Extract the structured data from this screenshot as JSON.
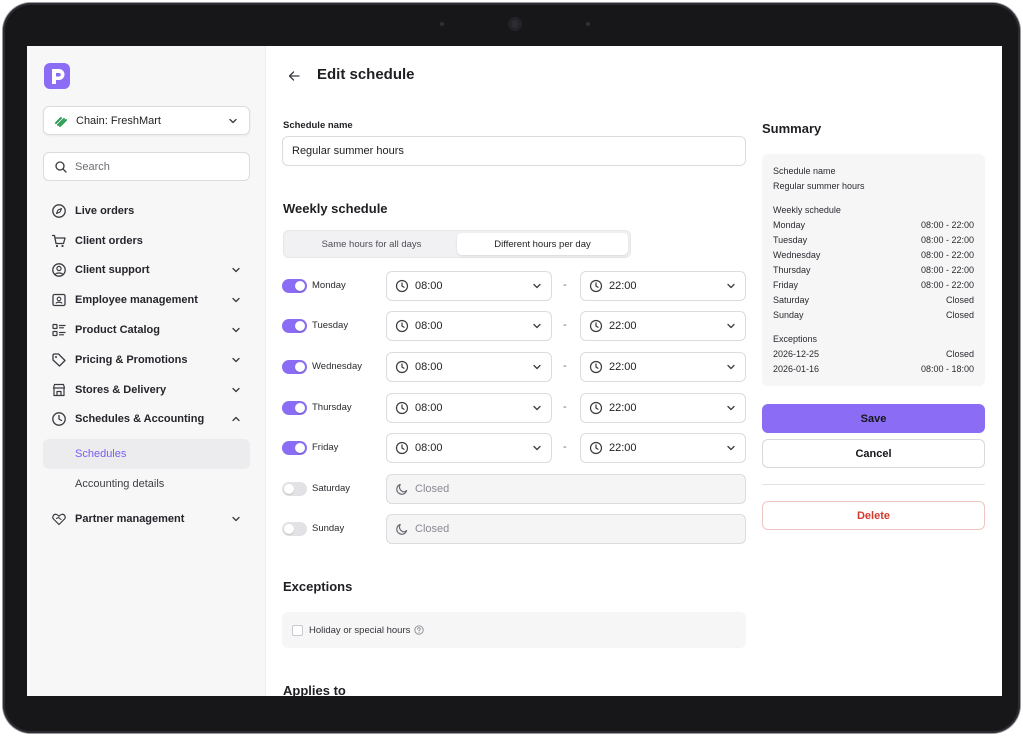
{
  "app": {
    "chain_label": "Chain: FreshMart",
    "search_placeholder": "Search",
    "brand_color": "#8b6cf4"
  },
  "sidebar": {
    "items": [
      {
        "label": "Live orders",
        "icon": "compass-icon",
        "expandable": false
      },
      {
        "label": "Client orders",
        "icon": "cart-icon",
        "expandable": false
      },
      {
        "label": "Client support",
        "icon": "user-circle-icon",
        "expandable": true
      },
      {
        "label": "Employee management",
        "icon": "id-card-icon",
        "expandable": true
      },
      {
        "label": "Product Catalog",
        "icon": "list-icon",
        "expandable": true
      },
      {
        "label": "Pricing & Promotions",
        "icon": "tag-icon",
        "expandable": true
      },
      {
        "label": "Stores & Delivery",
        "icon": "store-icon",
        "expandable": true
      },
      {
        "label": "Schedules & Accounting",
        "icon": "clock-icon",
        "expandable": true,
        "expanded": true
      }
    ],
    "subitems": [
      {
        "label": "Schedules",
        "active": true
      },
      {
        "label": "Accounting details",
        "active": false
      }
    ],
    "partner": {
      "label": "Partner management",
      "icon": "handshake-icon"
    }
  },
  "page": {
    "title": "Edit schedule",
    "schedule_name_label": "Schedule name",
    "schedule_name_value": "Regular summer hours",
    "weekly_title": "Weekly schedule",
    "mode_same": "Same hours for all days",
    "mode_different": "Different hours per day",
    "days": [
      {
        "name": "Monday",
        "enabled": true,
        "open": "08:00",
        "close": "22:00"
      },
      {
        "name": "Tuesday",
        "enabled": true,
        "open": "08:00",
        "close": "22:00"
      },
      {
        "name": "Wednesday",
        "enabled": true,
        "open": "08:00",
        "close": "22:00"
      },
      {
        "name": "Thursday",
        "enabled": true,
        "open": "08:00",
        "close": "22:00"
      },
      {
        "name": "Friday",
        "enabled": true,
        "open": "08:00",
        "close": "22:00"
      },
      {
        "name": "Saturday",
        "enabled": false,
        "closed_label": "Closed"
      },
      {
        "name": "Sunday",
        "enabled": false,
        "closed_label": "Closed"
      }
    ],
    "dash": "-",
    "exceptions_title": "Exceptions",
    "exceptions_checkbox": "Holiday or special hours",
    "applies_to_title": "Applies to"
  },
  "summary": {
    "title": "Summary",
    "name_label": "Schedule name",
    "name_value": "Regular summer hours",
    "weekly_label": "Weekly schedule",
    "days": [
      {
        "day": "Monday",
        "hours": "08:00 - 22:00"
      },
      {
        "day": "Tuesday",
        "hours": "08:00 - 22:00"
      },
      {
        "day": "Wednesday",
        "hours": "08:00 - 22:00"
      },
      {
        "day": "Thursday",
        "hours": "08:00 - 22:00"
      },
      {
        "day": "Friday",
        "hours": "08:00 - 22:00"
      },
      {
        "day": "Saturday",
        "hours": "Closed"
      },
      {
        "day": "Sunday",
        "hours": "Closed"
      }
    ],
    "exceptions_label": "Exceptions",
    "exceptions": [
      {
        "date": "2026-12-25",
        "hours": "Closed"
      },
      {
        "date": "2026-01-16",
        "hours": "08:00 - 18:00"
      }
    ]
  },
  "actions": {
    "save": "Save",
    "cancel": "Cancel",
    "delete": "Delete"
  }
}
